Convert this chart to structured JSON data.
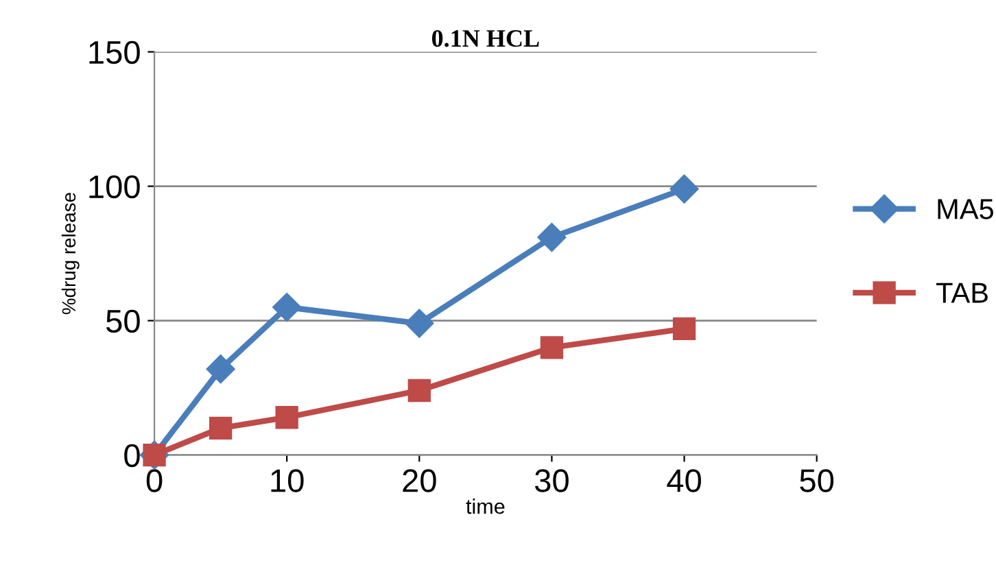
{
  "chart_data": {
    "type": "line",
    "title": "0.1N HCL",
    "xlabel": "time",
    "ylabel": "%drug release",
    "x": [
      0,
      5,
      10,
      20,
      30,
      40
    ],
    "series": [
      {
        "name": "MA5",
        "color": "#4a7ebb",
        "marker": "diamond",
        "values": [
          0,
          32,
          55,
          49,
          81,
          99
        ]
      },
      {
        "name": "TAB",
        "color": "#be4b48",
        "marker": "square",
        "values": [
          0,
          10,
          14,
          24,
          40,
          47
        ]
      }
    ],
    "xlim": [
      0,
      50
    ],
    "xticks": [
      0,
      10,
      20,
      30,
      40,
      50
    ],
    "ylim": [
      0,
      150
    ],
    "yticks": [
      0,
      50,
      100,
      150
    ],
    "grid": "y",
    "legend": "right"
  }
}
